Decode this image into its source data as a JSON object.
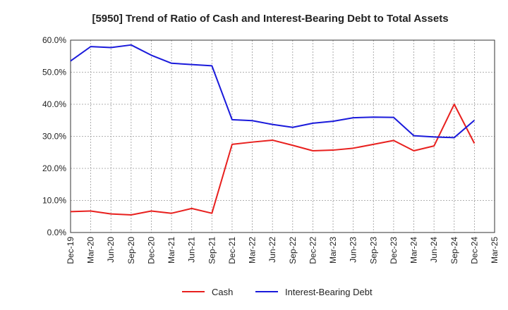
{
  "chart_data": {
    "type": "line",
    "title": "[5950]  Trend of Ratio of Cash and Interest-Bearing Debt to Total Assets",
    "xlabel": "",
    "ylabel": "",
    "ylim": [
      0,
      60
    ],
    "yticks": [
      "0.0%",
      "10.0%",
      "20.0%",
      "30.0%",
      "40.0%",
      "50.0%",
      "60.0%"
    ],
    "categories": [
      "Dec-19",
      "Mar-20",
      "Jun-20",
      "Sep-20",
      "Dec-20",
      "Mar-21",
      "Jun-21",
      "Sep-21",
      "Dec-21",
      "Mar-22",
      "Jun-22",
      "Sep-22",
      "Dec-22",
      "Mar-23",
      "Jun-23",
      "Sep-23",
      "Dec-23",
      "Mar-24",
      "Jun-24",
      "Sep-24",
      "Dec-24",
      "Mar-25"
    ],
    "series": [
      {
        "name": "Cash",
        "color": "#e8201e",
        "values": [
          6.5,
          6.7,
          5.8,
          5.5,
          6.7,
          6.0,
          7.5,
          6.0,
          27.5,
          28.2,
          28.8,
          27.2,
          25.5,
          25.7,
          26.3,
          27.5,
          28.7,
          25.5,
          27.0,
          40.0,
          27.8,
          null
        ]
      },
      {
        "name": "Interest-Bearing Debt",
        "color": "#1a1adb",
        "values": [
          53.5,
          58.0,
          57.7,
          58.5,
          55.3,
          52.8,
          52.4,
          52.0,
          35.2,
          34.9,
          33.7,
          32.8,
          34.1,
          34.7,
          35.8,
          36.0,
          35.9,
          30.2,
          29.8,
          29.6,
          35.0,
          null
        ]
      }
    ],
    "grid": true,
    "legend": "bottom-center"
  }
}
